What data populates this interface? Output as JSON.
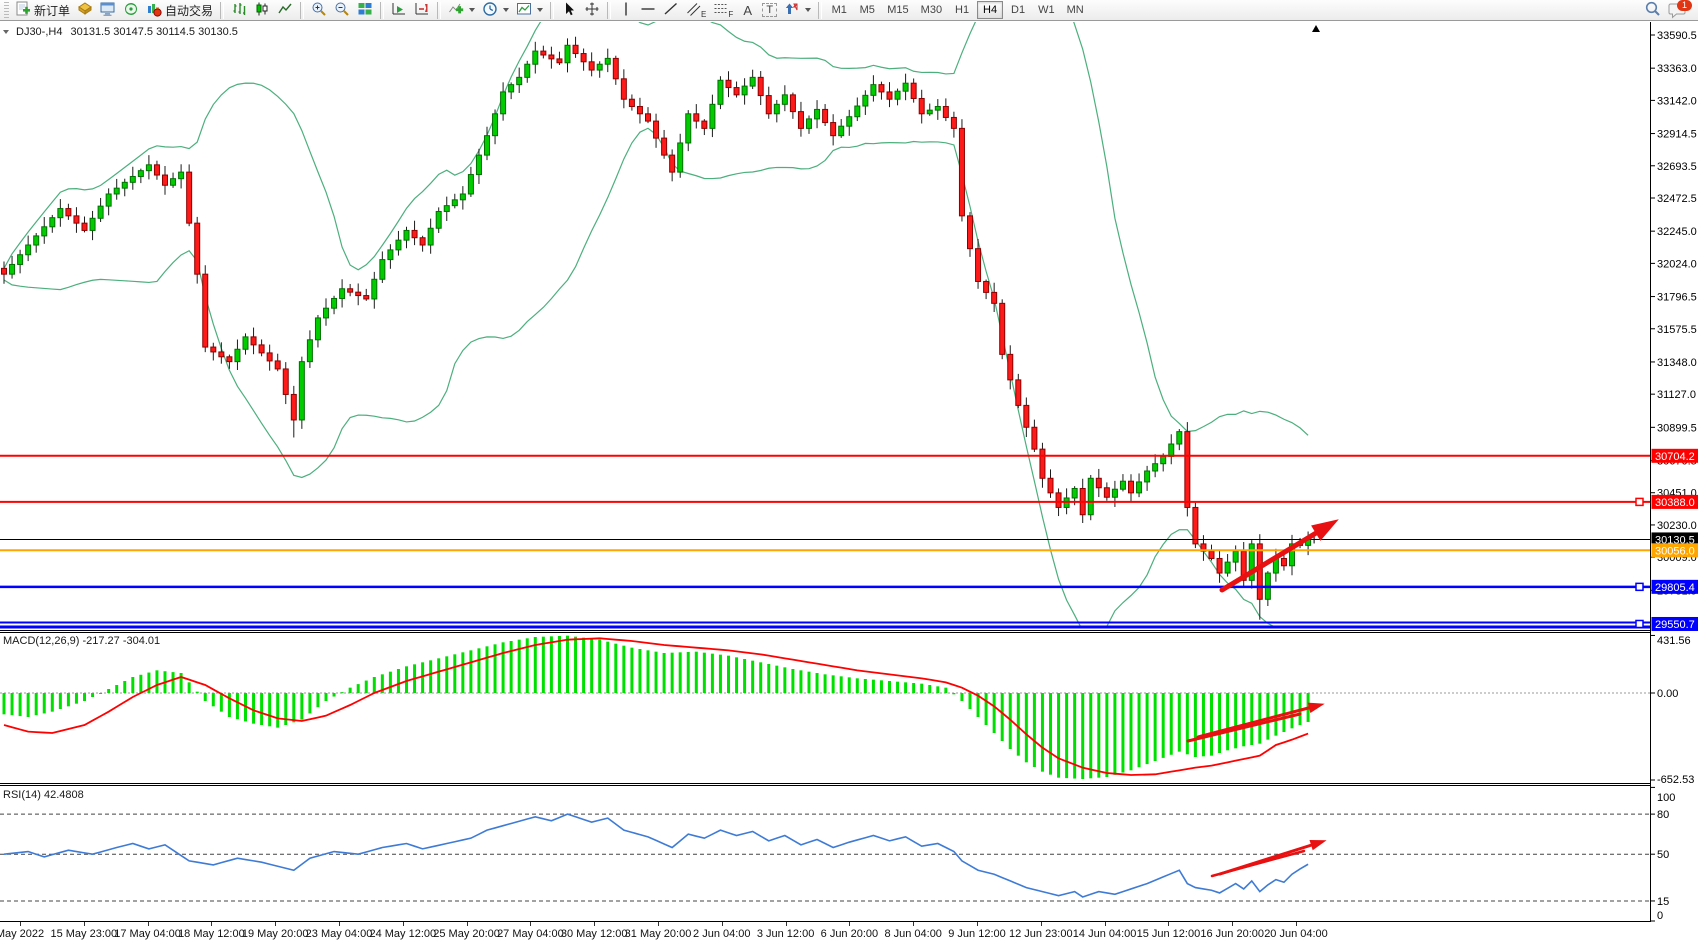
{
  "toolbar": {
    "new_order_label": "新订单",
    "auto_trading_label": "自动交易",
    "tools": {
      "channel_e": "E",
      "fibo_f": "F",
      "text_a": "A",
      "label_t": "T"
    },
    "timeframes": [
      "M1",
      "M5",
      "M15",
      "M30",
      "H1",
      "H4",
      "D1",
      "W1",
      "MN"
    ],
    "active_timeframe": "H4",
    "notification_badge": "1"
  },
  "chart": {
    "symbol_period": "DJ30-,H4",
    "ohlc": "30131.5 30147.5 30114.5 30130.5",
    "macd_label": "MACD(12,26,9) -217.27 -304.01",
    "rsi_label": "RSI(14) 42.4808",
    "price_ticks": [
      33590.5,
      33363.0,
      33142.0,
      32914.5,
      32693.5,
      32472.5,
      32245.0,
      32024.0,
      31796.5,
      31575.5,
      31348.0,
      31127.0,
      30899.5,
      30670.5,
      30451.0,
      30230.0,
      30009.0,
      29781.5
    ],
    "price_badges": [
      {
        "label": "30704.2",
        "price": 30704.2,
        "color": "#ff0000"
      },
      {
        "label": "30388.0",
        "price": 30388.0,
        "color": "#ff0000"
      },
      {
        "label": "30130.5",
        "price": 30130.5,
        "color": "#000000"
      },
      {
        "label": "30056.0",
        "price": 30056.0,
        "color": "#ffa500"
      },
      {
        "label": "29805.4",
        "price": 29805.4,
        "color": "#0000ff"
      },
      {
        "label": "29550.7",
        "price": 29550.7,
        "color": "#0000ff"
      }
    ],
    "hlines": [
      {
        "price": 30704.2,
        "color": "#ff0000",
        "width": 2,
        "handle": false,
        "double": false
      },
      {
        "price": 30388.0,
        "color": "#ff0000",
        "width": 2,
        "handle": true,
        "double": false
      },
      {
        "price": 30130.5,
        "color": "#000000",
        "width": 1,
        "handle": false,
        "double": false
      },
      {
        "price": 30056.0,
        "color": "#ffa500",
        "width": 2,
        "handle": false,
        "double": false
      },
      {
        "price": 29805.4,
        "color": "#0000ff",
        "width": 2.5,
        "handle": true,
        "double": false
      },
      {
        "price": 29550.7,
        "color": "#0000ff",
        "width": 2.5,
        "handle": true,
        "double": true
      }
    ],
    "macd_ticks": [
      {
        "label": "431.56",
        "value": 431.56
      },
      {
        "label": "0.00",
        "value": 0
      },
      {
        "label": "-652.53",
        "value": -652.53
      }
    ],
    "rsi_ticks": [
      {
        "label": "100",
        "value": 100
      },
      {
        "label": "80",
        "value": 80
      },
      {
        "label": "50",
        "value": 50
      },
      {
        "label": "15",
        "value": 15
      },
      {
        "label": "0",
        "value": 0
      }
    ],
    "rsi_levels": [
      80,
      50,
      15
    ],
    "time_labels": [
      "May 2022",
      "15 May 23:00",
      "17 May 04:00",
      "18 May 12:00",
      "19 May 20:00",
      "23 May 04:00",
      "24 May 12:00",
      "25 May 20:00",
      "27 May 04:00",
      "30 May 12:00",
      "31 May 20:00",
      "2 Jun 04:00",
      "3 Jun 12:00",
      "6 Jun 20:00",
      "8 Jun 04:00",
      "9 Jun 12:00",
      "12 Jun 23:00",
      "14 Jun 04:00",
      "15 Jun 12:00",
      "16 Jun 20:00",
      "20 Jun 04:00"
    ]
  },
  "chart_data": {
    "type": "candlestick",
    "bars": 163,
    "close_anchors": [
      [
        0,
        31950
      ],
      [
        3,
        32150
      ],
      [
        7,
        32400
      ],
      [
        10,
        32250
      ],
      [
        13,
        32500
      ],
      [
        18,
        32700
      ],
      [
        20,
        32560
      ],
      [
        22,
        32650
      ],
      [
        24,
        31950
      ],
      [
        25,
        31450
      ],
      [
        28,
        31350
      ],
      [
        30,
        31520
      ],
      [
        34,
        31300
      ],
      [
        36,
        30950
      ],
      [
        37,
        31350
      ],
      [
        39,
        31650
      ],
      [
        42,
        31850
      ],
      [
        45,
        31780
      ],
      [
        47,
        32050
      ],
      [
        50,
        32250
      ],
      [
        52,
        32150
      ],
      [
        54,
        32380
      ],
      [
        57,
        32500
      ],
      [
        60,
        32900
      ],
      [
        62,
        33200
      ],
      [
        64,
        33300
      ],
      [
        66,
        33480
      ],
      [
        69,
        33400
      ],
      [
        70,
        33520
      ],
      [
        73,
        33350
      ],
      [
        75,
        33430
      ],
      [
        77,
        33150
      ],
      [
        80,
        33000
      ],
      [
        83,
        32650
      ],
      [
        85,
        33050
      ],
      [
        87,
        32950
      ],
      [
        89,
        33280
      ],
      [
        91,
        33180
      ],
      [
        93,
        33300
      ],
      [
        95,
        33050
      ],
      [
        97,
        33180
      ],
      [
        99,
        32950
      ],
      [
        101,
        33080
      ],
      [
        103,
        32900
      ],
      [
        105,
        33030
      ],
      [
        108,
        33250
      ],
      [
        110,
        33150
      ],
      [
        112,
        33260
      ],
      [
        114,
        33050
      ],
      [
        116,
        33100
      ],
      [
        118,
        32950
      ],
      [
        119,
        32350
      ],
      [
        121,
        31900
      ],
      [
        123,
        31750
      ],
      [
        124,
        31400
      ],
      [
        126,
        31050
      ],
      [
        128,
        30750
      ],
      [
        129,
        30550
      ],
      [
        131,
        30350
      ],
      [
        133,
        30480
      ],
      [
        134,
        30300
      ],
      [
        135,
        30550
      ],
      [
        137,
        30420
      ],
      [
        139,
        30530
      ],
      [
        140,
        30450
      ],
      [
        142,
        30600
      ],
      [
        144,
        30700
      ],
      [
        146,
        30870
      ],
      [
        147,
        30350
      ],
      [
        148,
        30100
      ],
      [
        150,
        30000
      ],
      [
        151,
        29900
      ],
      [
        153,
        30050
      ],
      [
        154,
        29850
      ],
      [
        155,
        30100
      ],
      [
        156,
        29720
      ],
      [
        157,
        29900
      ],
      [
        158,
        30000
      ],
      [
        159,
        29950
      ],
      [
        160,
        30100
      ],
      [
        161,
        30090
      ],
      [
        162,
        30130.5
      ]
    ],
    "macd_anchors": [
      [
        0,
        -160,
        -240
      ],
      [
        3,
        -180,
        -290
      ],
      [
        6,
        -140,
        -300
      ],
      [
        10,
        -60,
        -240
      ],
      [
        13,
        30,
        -140
      ],
      [
        16,
        120,
        -30
      ],
      [
        19,
        170,
        60
      ],
      [
        22,
        150,
        120
      ],
      [
        25,
        -60,
        60
      ],
      [
        28,
        -180,
        -40
      ],
      [
        31,
        -230,
        -130
      ],
      [
        34,
        -260,
        -190
      ],
      [
        37,
        -200,
        -210
      ],
      [
        40,
        -60,
        -170
      ],
      [
        43,
        40,
        -90
      ],
      [
        46,
        120,
        0
      ],
      [
        50,
        200,
        90
      ],
      [
        54,
        260,
        160
      ],
      [
        58,
        320,
        230
      ],
      [
        62,
        380,
        300
      ],
      [
        66,
        420,
        360
      ],
      [
        70,
        430,
        400
      ],
      [
        74,
        400,
        410
      ],
      [
        78,
        340,
        390
      ],
      [
        82,
        300,
        360
      ],
      [
        86,
        310,
        340
      ],
      [
        90,
        280,
        320
      ],
      [
        94,
        230,
        290
      ],
      [
        98,
        180,
        250
      ],
      [
        102,
        140,
        210
      ],
      [
        106,
        110,
        170
      ],
      [
        110,
        90,
        140
      ],
      [
        114,
        70,
        110
      ],
      [
        117,
        40,
        80
      ],
      [
        119,
        -60,
        40
      ],
      [
        121,
        -180,
        -20
      ],
      [
        123,
        -300,
        -100
      ],
      [
        125,
        -420,
        -200
      ],
      [
        127,
        -520,
        -310
      ],
      [
        129,
        -590,
        -410
      ],
      [
        131,
        -635,
        -490
      ],
      [
        134,
        -645,
        -560
      ],
      [
        137,
        -630,
        -600
      ],
      [
        140,
        -580,
        -615
      ],
      [
        143,
        -510,
        -610
      ],
      [
        146,
        -440,
        -580
      ],
      [
        148,
        -480,
        -560
      ],
      [
        150,
        -470,
        -545
      ],
      [
        152,
        -430,
        -520
      ],
      [
        154,
        -400,
        -495
      ],
      [
        156,
        -380,
        -470
      ],
      [
        158,
        -320,
        -390
      ],
      [
        160,
        -265,
        -350
      ],
      [
        162,
        -217.27,
        -304.01
      ]
    ],
    "rsi_anchors": [
      [
        0,
        50
      ],
      [
        3,
        52
      ],
      [
        5,
        48
      ],
      [
        8,
        53
      ],
      [
        11,
        50
      ],
      [
        14,
        55
      ],
      [
        16,
        58
      ],
      [
        18,
        54
      ],
      [
        20,
        57
      ],
      [
        23,
        45
      ],
      [
        26,
        42
      ],
      [
        29,
        47
      ],
      [
        32,
        44
      ],
      [
        36,
        38
      ],
      [
        38,
        47
      ],
      [
        41,
        52
      ],
      [
        44,
        50
      ],
      [
        47,
        55
      ],
      [
        50,
        58
      ],
      [
        52,
        54
      ],
      [
        55,
        58
      ],
      [
        58,
        62
      ],
      [
        60,
        68
      ],
      [
        63,
        73
      ],
      [
        66,
        78
      ],
      [
        68,
        75
      ],
      [
        70,
        80
      ],
      [
        73,
        74
      ],
      [
        75,
        77
      ],
      [
        77,
        68
      ],
      [
        80,
        63
      ],
      [
        83,
        55
      ],
      [
        85,
        65
      ],
      [
        87,
        62
      ],
      [
        89,
        68
      ],
      [
        91,
        64
      ],
      [
        93,
        67
      ],
      [
        95,
        60
      ],
      [
        97,
        64
      ],
      [
        99,
        57
      ],
      [
        101,
        61
      ],
      [
        103,
        55
      ],
      [
        105,
        59
      ],
      [
        108,
        64
      ],
      [
        110,
        60
      ],
      [
        112,
        63
      ],
      [
        114,
        56
      ],
      [
        116,
        58
      ],
      [
        118,
        52
      ],
      [
        119,
        45
      ],
      [
        121,
        38
      ],
      [
        123,
        35
      ],
      [
        125,
        30
      ],
      [
        127,
        25
      ],
      [
        129,
        22
      ],
      [
        131,
        19
      ],
      [
        133,
        22
      ],
      [
        134,
        18
      ],
      [
        136,
        22
      ],
      [
        138,
        20
      ],
      [
        140,
        24
      ],
      [
        142,
        28
      ],
      [
        144,
        33
      ],
      [
        146,
        38
      ],
      [
        147,
        28
      ],
      [
        148,
        25
      ],
      [
        150,
        23
      ],
      [
        151,
        21
      ],
      [
        153,
        28
      ],
      [
        154,
        24
      ],
      [
        155,
        30
      ],
      [
        156,
        22
      ],
      [
        157,
        27
      ],
      [
        158,
        31
      ],
      [
        159,
        29
      ],
      [
        160,
        35
      ],
      [
        161,
        39
      ],
      [
        162,
        42.48
      ]
    ],
    "annotations": [
      {
        "panel": "main",
        "from": [
          1222,
          590
        ],
        "to": [
          1326,
          527
        ],
        "width": 5,
        "head": true
      },
      {
        "panel": "macd",
        "from": [
          1188,
          741
        ],
        "to": [
          1300,
          714
        ],
        "width": 3,
        "head": false
      },
      {
        "panel": "macd",
        "from": [
          1198,
          737
        ],
        "to": [
          1316,
          706
        ],
        "width": 3,
        "head": true
      },
      {
        "panel": "rsi",
        "from": [
          1212,
          876
        ],
        "to": [
          1304,
          851
        ],
        "width": 2.5,
        "head": false
      },
      {
        "panel": "rsi",
        "from": [
          1220,
          874
        ],
        "to": [
          1318,
          843
        ],
        "width": 3,
        "head": true
      }
    ],
    "colors": {
      "up": "#00cc00",
      "up_edge": "#007000",
      "down": "#ff1a1a",
      "down_edge": "#8d0000",
      "wick": "#1c1c1c",
      "band": "#4caf7d",
      "macd_hist": "#00e000",
      "macd_signal": "#ff0000",
      "rsi": "#3e7bd6",
      "annotation": "#e81010"
    }
  }
}
